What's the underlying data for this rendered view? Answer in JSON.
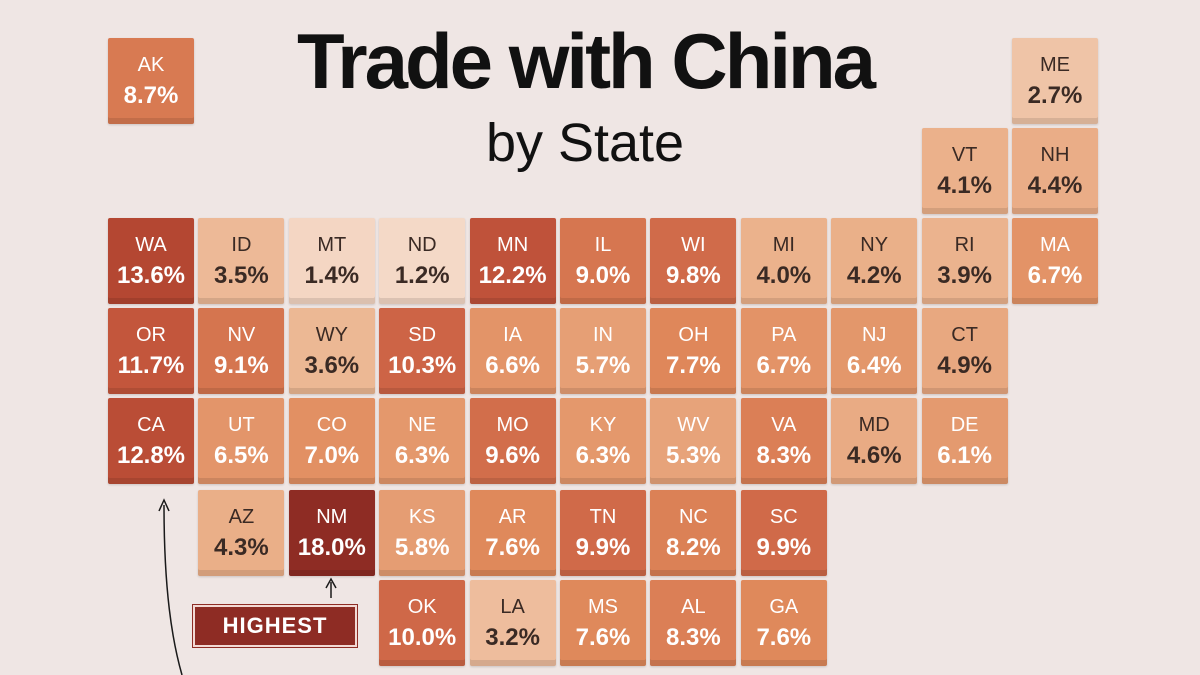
{
  "title": "Trade with China",
  "subtitle": "by State",
  "callout": "HIGHEST",
  "chart_data": {
    "type": "table",
    "unit": "%",
    "states": [
      {
        "abbr": "AK",
        "label": "8.7%",
        "value": 8.7
      },
      {
        "abbr": "ME",
        "label": "2.7%",
        "value": 2.7
      },
      {
        "abbr": "VT",
        "label": "4.1%",
        "value": 4.1
      },
      {
        "abbr": "NH",
        "label": "4.4%",
        "value": 4.4
      },
      {
        "abbr": "WA",
        "label": "13.6%",
        "value": 13.6
      },
      {
        "abbr": "ID",
        "label": "3.5%",
        "value": 3.5
      },
      {
        "abbr": "MT",
        "label": "1.4%",
        "value": 1.4
      },
      {
        "abbr": "ND",
        "label": "1.2%",
        "value": 1.2
      },
      {
        "abbr": "MN",
        "label": "12.2%",
        "value": 12.2
      },
      {
        "abbr": "IL",
        "label": "9.0%",
        "value": 9.0
      },
      {
        "abbr": "WI",
        "label": "9.8%",
        "value": 9.8
      },
      {
        "abbr": "MI",
        "label": "4.0%",
        "value": 4.0
      },
      {
        "abbr": "NY",
        "label": "4.2%",
        "value": 4.2
      },
      {
        "abbr": "RI",
        "label": "3.9%",
        "value": 3.9
      },
      {
        "abbr": "MA",
        "label": "6.7%",
        "value": 6.7
      },
      {
        "abbr": "OR",
        "label": "11.7%",
        "value": 11.7
      },
      {
        "abbr": "NV",
        "label": "9.1%",
        "value": 9.1
      },
      {
        "abbr": "WY",
        "label": "3.6%",
        "value": 3.6
      },
      {
        "abbr": "SD",
        "label": "10.3%",
        "value": 10.3
      },
      {
        "abbr": "IA",
        "label": "6.6%",
        "value": 6.6
      },
      {
        "abbr": "IN",
        "label": "5.7%",
        "value": 5.7
      },
      {
        "abbr": "OH",
        "label": "7.7%",
        "value": 7.7
      },
      {
        "abbr": "PA",
        "label": "6.7%",
        "value": 6.7
      },
      {
        "abbr": "NJ",
        "label": "6.4%",
        "value": 6.4
      },
      {
        "abbr": "CT",
        "label": "4.9%",
        "value": 4.9
      },
      {
        "abbr": "CA",
        "label": "12.8%",
        "value": 12.8
      },
      {
        "abbr": "UT",
        "label": "6.5%",
        "value": 6.5
      },
      {
        "abbr": "CO",
        "label": "7.0%",
        "value": 7.0
      },
      {
        "abbr": "NE",
        "label": "6.3%",
        "value": 6.3
      },
      {
        "abbr": "MO",
        "label": "9.6%",
        "value": 9.6
      },
      {
        "abbr": "KY",
        "label": "6.3%",
        "value": 6.3
      },
      {
        "abbr": "WV",
        "label": "5.3%",
        "value": 5.3
      },
      {
        "abbr": "VA",
        "label": "8.3%",
        "value": 8.3
      },
      {
        "abbr": "MD",
        "label": "4.6%",
        "value": 4.6
      },
      {
        "abbr": "DE",
        "label": "6.1%",
        "value": 6.1
      },
      {
        "abbr": "AZ",
        "label": "4.3%",
        "value": 4.3
      },
      {
        "abbr": "NM",
        "label": "18.0%",
        "value": 18.0
      },
      {
        "abbr": "KS",
        "label": "5.8%",
        "value": 5.8
      },
      {
        "abbr": "AR",
        "label": "7.6%",
        "value": 7.6
      },
      {
        "abbr": "TN",
        "label": "9.9%",
        "value": 9.9
      },
      {
        "abbr": "NC",
        "label": "8.2%",
        "value": 8.2
      },
      {
        "abbr": "SC",
        "label": "9.9%",
        "value": 9.9
      },
      {
        "abbr": "OK",
        "label": "10.0%",
        "value": 10.0
      },
      {
        "abbr": "LA",
        "label": "3.2%",
        "value": 3.2
      },
      {
        "abbr": "MS",
        "label": "7.6%",
        "value": 7.6
      },
      {
        "abbr": "AL",
        "label": "8.3%",
        "value": 8.3
      },
      {
        "abbr": "GA",
        "label": "7.6%",
        "value": 7.6
      }
    ]
  },
  "colors": {
    "background": "#efe6e4",
    "highlight": "#8e2c24",
    "scale_low": "#f5dccb",
    "scale_high": "#8e2c24"
  }
}
